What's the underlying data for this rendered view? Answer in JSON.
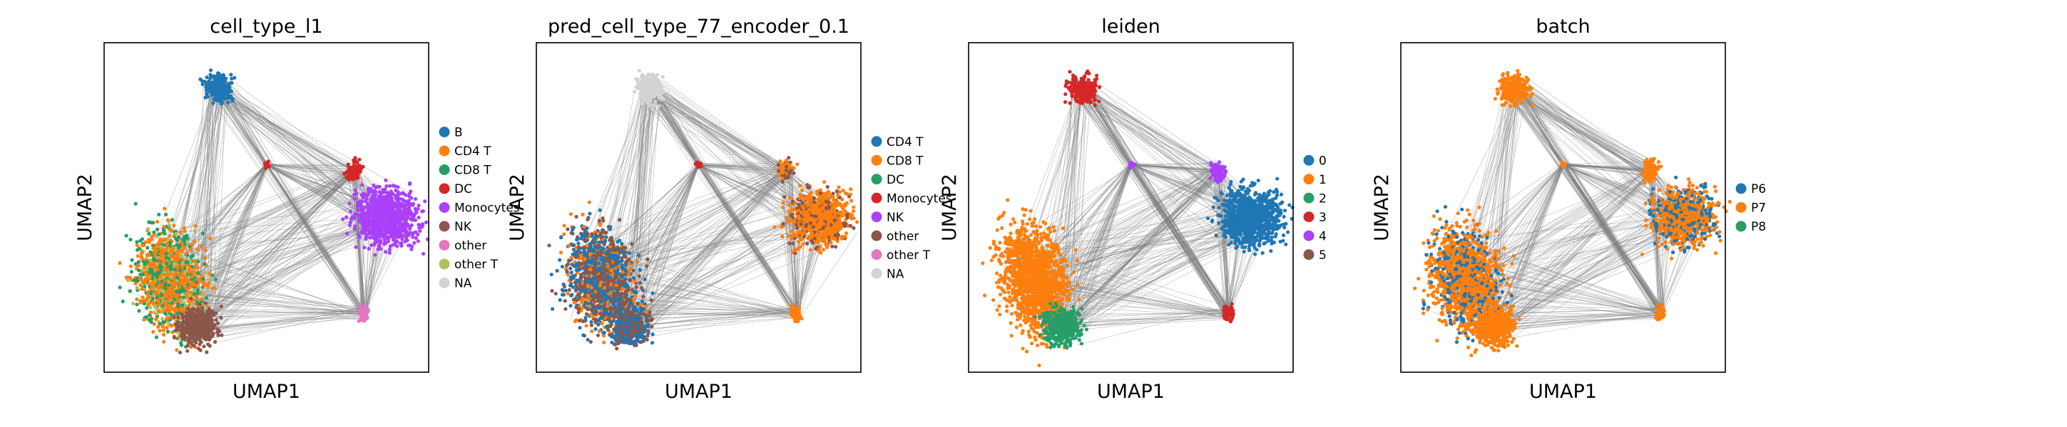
{
  "chart_data": [
    {
      "type": "scatter",
      "title": "cell_type_l1",
      "xlabel": "UMAP1",
      "ylabel": "UMAP2",
      "grid": false,
      "legend_placement": "right",
      "series": [
        {
          "name": "B",
          "color": "#1f77b4"
        },
        {
          "name": "CD4 T",
          "color": "#ff7f0e"
        },
        {
          "name": "CD8 T",
          "color": "#279e68"
        },
        {
          "name": "DC",
          "color": "#d62728"
        },
        {
          "name": "Monocytes",
          "color": "#aa40fc"
        },
        {
          "name": "NK",
          "color": "#8c564b"
        },
        {
          "name": "other",
          "color": "#e377c2"
        },
        {
          "name": "other T",
          "color": "#b5bd61"
        },
        {
          "name": "NA",
          "color": "#d3d3d3"
        }
      ]
    },
    {
      "type": "scatter",
      "title": "pred_cell_type_77_encoder_0.1",
      "xlabel": "UMAP1",
      "ylabel": "UMAP2",
      "grid": false,
      "legend_placement": "right",
      "series": [
        {
          "name": "CD4 T",
          "color": "#1f77b4"
        },
        {
          "name": "CD8 T",
          "color": "#ff7f0e"
        },
        {
          "name": "DC",
          "color": "#279e68"
        },
        {
          "name": "Monocytes",
          "color": "#d62728"
        },
        {
          "name": "NK",
          "color": "#aa40fc"
        },
        {
          "name": "other",
          "color": "#8c564b"
        },
        {
          "name": "other T",
          "color": "#e377c2"
        },
        {
          "name": "NA",
          "color": "#d3d3d3"
        }
      ]
    },
    {
      "type": "scatter",
      "title": "leiden",
      "xlabel": "UMAP1",
      "ylabel": "UMAP2",
      "grid": false,
      "legend_placement": "right",
      "series": [
        {
          "name": "0",
          "color": "#1f77b4"
        },
        {
          "name": "1",
          "color": "#ff7f0e"
        },
        {
          "name": "2",
          "color": "#279e68"
        },
        {
          "name": "3",
          "color": "#d62728"
        },
        {
          "name": "4",
          "color": "#aa40fc"
        },
        {
          "name": "5",
          "color": "#8c564b"
        }
      ]
    },
    {
      "type": "scatter",
      "title": "batch",
      "xlabel": "UMAP1",
      "ylabel": "UMAP2",
      "grid": false,
      "legend_placement": "right",
      "series": [
        {
          "name": "P6",
          "color": "#1f77b4"
        },
        {
          "name": "P7",
          "color": "#ff7f0e"
        },
        {
          "name": "P8",
          "color": "#279e68"
        }
      ]
    }
  ]
}
